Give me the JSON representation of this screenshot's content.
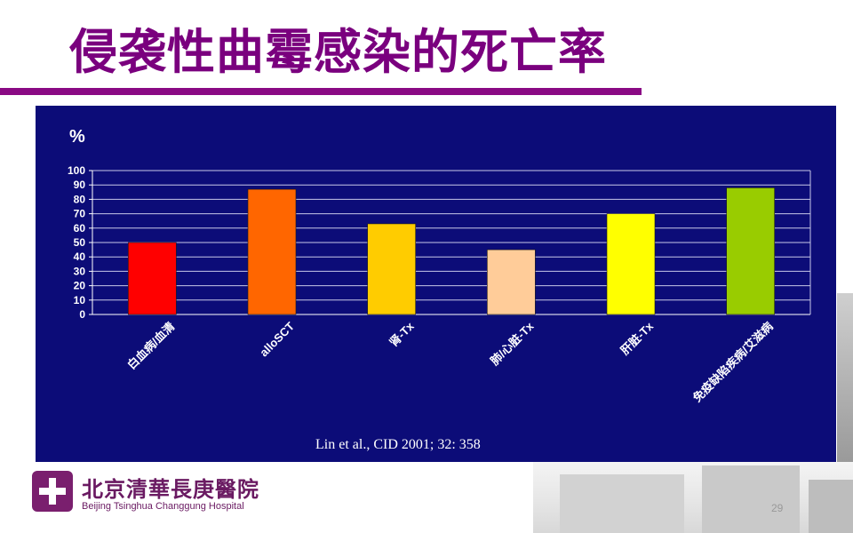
{
  "slide": {
    "title": "侵袭性曲霉感染的死亡率",
    "page_number": "29"
  },
  "logo": {
    "name_cn": "北京清華長庚醫院",
    "name_en": "Beijing Tsinghua Changgung Hospital"
  },
  "colors": {
    "title": "#7a007e",
    "rule": "#8a0a84",
    "chart_background": "#0c0c78"
  },
  "chart_data": {
    "type": "bar",
    "ylabel": "%",
    "ylim": [
      0,
      100
    ],
    "yticks": [
      0,
      10,
      20,
      30,
      40,
      50,
      60,
      70,
      80,
      90,
      100
    ],
    "grid": true,
    "categories": [
      "白血病/血清",
      "alloSCT",
      "肾-Tx",
      "肺/心脏-Tx",
      "肝脏-Tx",
      "免疫缺陷疾病/艾滋病"
    ],
    "values": [
      50,
      87,
      63,
      45,
      70,
      88
    ],
    "bar_colors": [
      "#ff0000",
      "#ff6600",
      "#ffcc00",
      "#ffcc99",
      "#ffff00",
      "#99cc00"
    ],
    "annotation": "Lin et al., CID 2001; 32: 358"
  }
}
